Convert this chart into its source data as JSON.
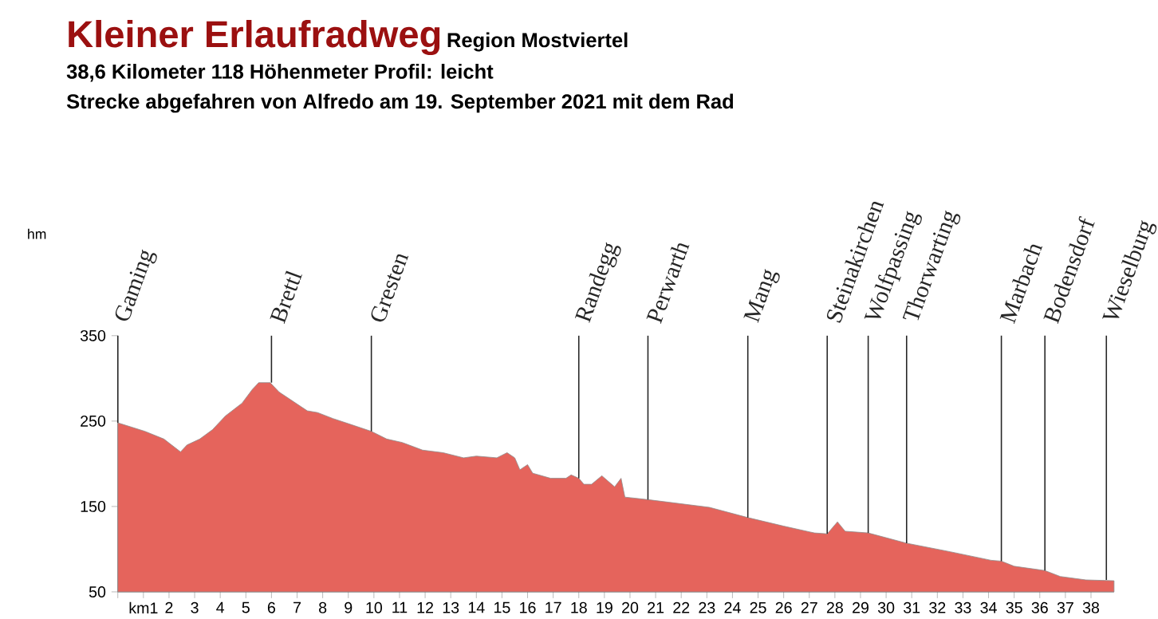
{
  "chart_data": {
    "type": "area",
    "title": "Kleiner Erlaufradweg",
    "subtitle": "Region Mostviertel",
    "annotations": [
      "38,6 Kilometer 118 Höhenmeter  Profil: leicht",
      "Strecke abgefahren von Alfredo am 19. September 2021 mit dem Rad",
      "hm",
      {
        "text": "Gaming",
        "x": 0,
        "y": 248
      },
      {
        "text": "Brettl",
        "x": 6.0,
        "y": 295
      },
      {
        "text": "Gresten",
        "x": 9.9,
        "y": 238
      },
      {
        "text": "Randegg",
        "x": 18.0,
        "y": 183
      },
      {
        "text": "Perwarth",
        "x": 20.7,
        "y": 158
      },
      {
        "text": "Mang",
        "x": 24.6,
        "y": 137
      },
      {
        "text": "Steinakirchen",
        "x": 27.7,
        "y": 118
      },
      {
        "text": "Wolfpassing",
        "x": 29.3,
        "y": 119
      },
      {
        "text": "Thorwarting",
        "x": 30.8,
        "y": 107
      },
      {
        "text": "Marbach",
        "x": 34.5,
        "y": 86
      },
      {
        "text": "Bodensdorf",
        "x": 36.2,
        "y": 75
      },
      {
        "text": "Wieselburg",
        "x": 38.6,
        "y": 64
      }
    ],
    "x": [
      0,
      1.06,
      1.8,
      2.45,
      2.7,
      3.2,
      3.7,
      4.2,
      4.85,
      5.25,
      5.5,
      5.95,
      6.3,
      6.7,
      7.4,
      7.8,
      8.4,
      9.0,
      9.9,
      10.5,
      11.1,
      11.9,
      12.7,
      13.5,
      14.0,
      14.8,
      15.2,
      15.5,
      15.7,
      16.0,
      16.2,
      16.9,
      17.5,
      17.7,
      18.0,
      18.2,
      18.5,
      18.9,
      19.4,
      19.65,
      19.8,
      20.7,
      21.5,
      23.1,
      24.6,
      26.0,
      27.2,
      27.7,
      28.1,
      28.4,
      29.3,
      30.8,
      32.5,
      34.1,
      34.5,
      35.0,
      36.2,
      36.8,
      37.8,
      38.9
    ],
    "series": [
      {
        "color": "#e5645c",
        "values": [
          248,
          238,
          229,
          214,
          222,
          229,
          240,
          256,
          271,
          287,
          295,
          295,
          284,
          276,
          262,
          260,
          253,
          247,
          238,
          229,
          225,
          216,
          213,
          207,
          209,
          207,
          213,
          207,
          193,
          199,
          189,
          183,
          183,
          187,
          183,
          176,
          176,
          186,
          173,
          183,
          161,
          158,
          155,
          149,
          137,
          127,
          119,
          118,
          132,
          121,
          119,
          107,
          97,
          87,
          86,
          80,
          75,
          68,
          64,
          63
        ]
      }
    ],
    "xlim": [
      0,
      38.9
    ],
    "ylim": [
      50,
      350
    ],
    "xticks": [
      {
        "value": 0,
        "label": null
      },
      {
        "value": 1,
        "label": "km1"
      },
      2,
      3,
      4,
      5,
      6,
      7,
      8,
      9,
      10,
      11,
      12,
      13,
      14,
      15,
      16,
      17,
      18,
      19,
      20,
      21,
      22,
      23,
      24,
      25,
      26,
      27,
      28,
      29,
      30,
      31,
      32,
      33,
      34,
      35,
      36,
      37,
      38
    ],
    "yticks": [
      50,
      150,
      250,
      350
    ]
  }
}
